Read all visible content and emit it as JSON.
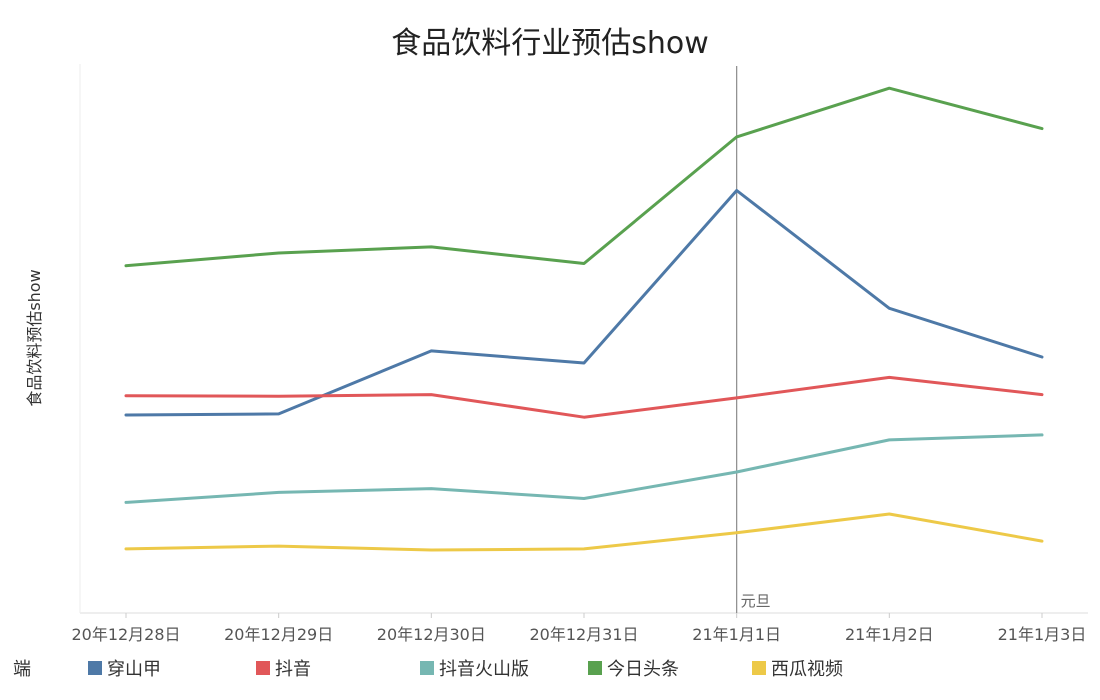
{
  "chart_data": {
    "type": "line",
    "title": "食品饮料行业预估show",
    "xlabel": "",
    "ylabel": "食品饮料预估show",
    "categories": [
      "20年12月28日",
      "20年12月29日",
      "20年12月30日",
      "20年12月31日",
      "21年1月1日",
      "21年1月2日",
      "21年1月3日"
    ],
    "ylim": [
      0,
      100
    ],
    "y_ticks_shown": false,
    "grid": false,
    "annotation": {
      "category": "21年1月1日",
      "label": "元旦"
    },
    "legend": {
      "title": "端",
      "position": "bottom"
    },
    "series": [
      {
        "name": "穿山甲",
        "color": "#4e79a7",
        "values": [
          35.8,
          36.0,
          47.4,
          45.2,
          76.4,
          55.1,
          46.3
        ]
      },
      {
        "name": "抖音",
        "color": "#e15759",
        "values": [
          39.3,
          39.2,
          39.5,
          35.4,
          38.9,
          42.6,
          39.5
        ]
      },
      {
        "name": "抖音火山版",
        "color": "#76b7b2",
        "values": [
          20.0,
          21.8,
          22.5,
          20.7,
          25.5,
          31.3,
          32.2
        ]
      },
      {
        "name": "今日头条",
        "color": "#59a14f",
        "values": [
          62.8,
          65.1,
          66.2,
          63.2,
          86.1,
          94.9,
          87.6
        ]
      },
      {
        "name": "西瓜视频",
        "color": "#edc948",
        "values": [
          11.6,
          12.1,
          11.4,
          11.6,
          14.5,
          17.9,
          13.0
        ]
      }
    ]
  }
}
